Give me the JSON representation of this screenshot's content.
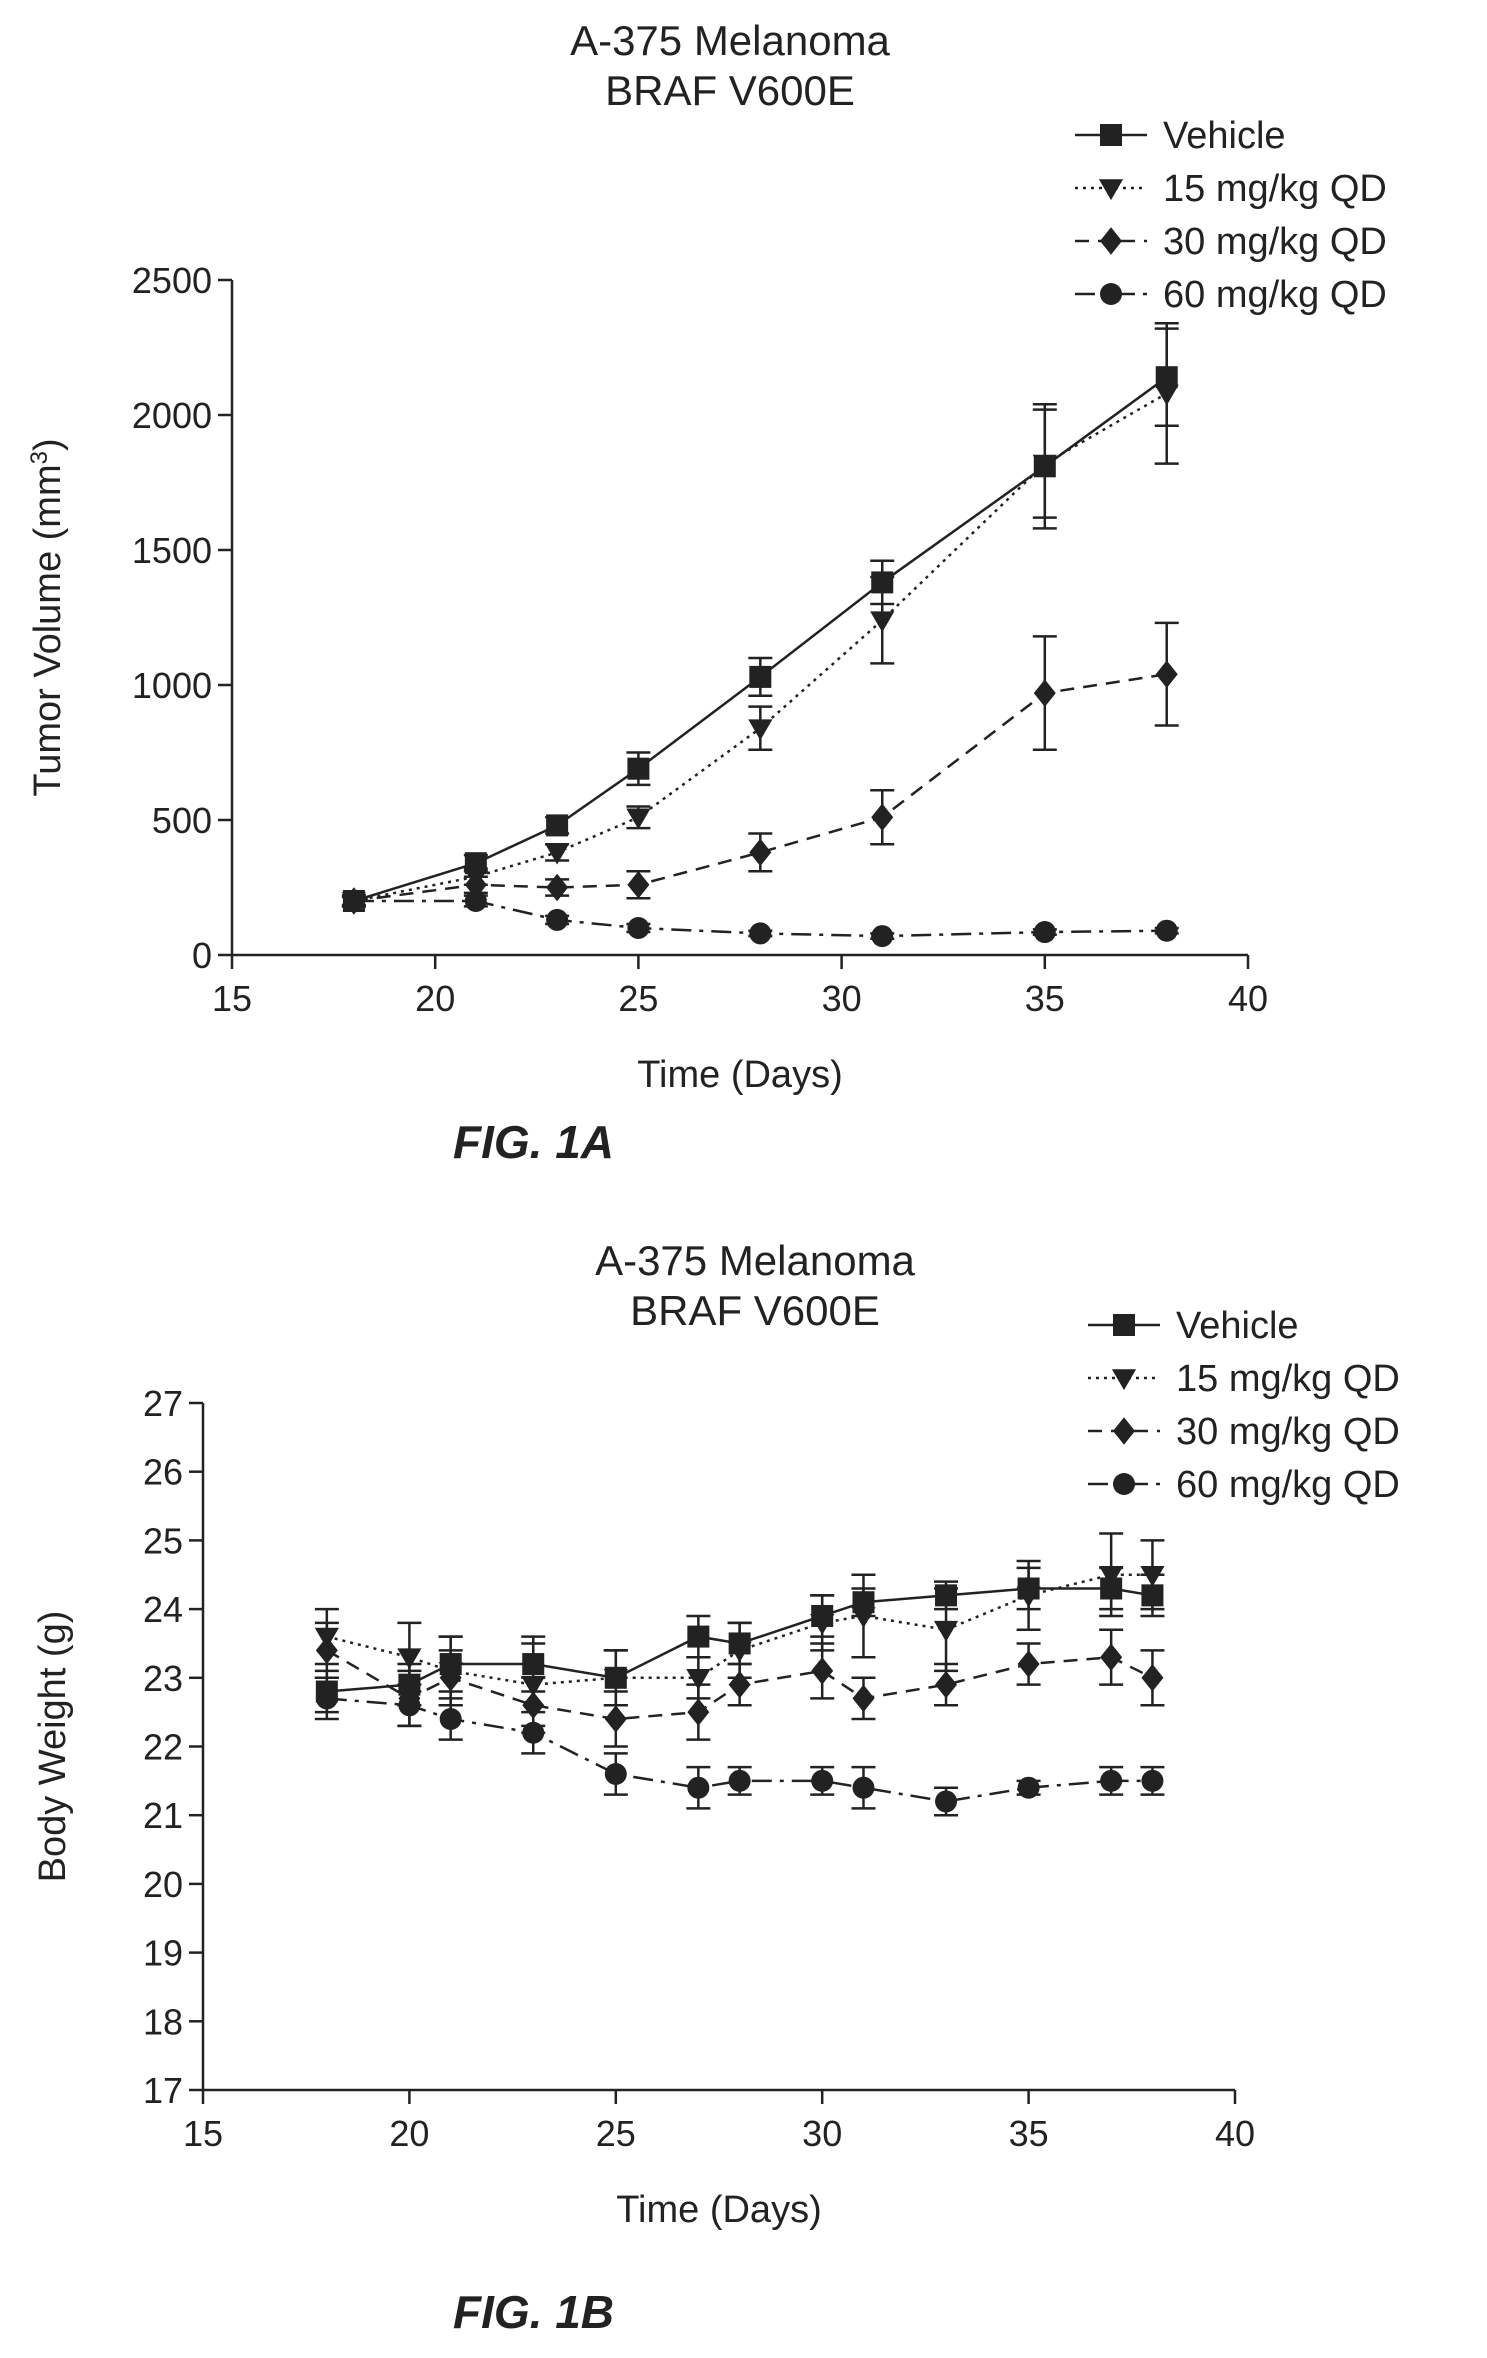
{
  "figures": [
    {
      "caption": "FIG. 1A"
    },
    {
      "caption": "FIG. 1B"
    }
  ],
  "chart_data": [
    {
      "type": "line",
      "title": "A-375 Melanoma",
      "subtitle": "BRAF V600E",
      "xlabel": "Time (Days)",
      "ylabel": "Tumor Volume (mm",
      "ylabel_sup": "3",
      "ylabel_close": ")",
      "xlim": [
        15,
        40
      ],
      "ylim": [
        0,
        2500
      ],
      "xticks": [
        15,
        20,
        25,
        30,
        35,
        40
      ],
      "yticks": [
        0,
        500,
        1000,
        1500,
        2000,
        2500
      ],
      "grid": false,
      "legend_position": "top-right",
      "series": [
        {
          "name": "Vehicle",
          "marker": "square",
          "dash": "solid",
          "x": [
            18,
            21,
            23,
            25,
            28,
            31,
            35,
            38
          ],
          "y": [
            200,
            340,
            480,
            690,
            1030,
            1380,
            1810,
            2140
          ],
          "err": [
            20,
            30,
            30,
            60,
            70,
            80,
            230,
            180
          ]
        },
        {
          "name": "15 mg/kg QD",
          "marker": "triangle-down",
          "dash": "dotted",
          "x": [
            18,
            21,
            23,
            25,
            28,
            31,
            35,
            38
          ],
          "y": [
            200,
            290,
            380,
            510,
            840,
            1240,
            1820,
            2080
          ],
          "err": [
            20,
            30,
            30,
            40,
            80,
            160,
            200,
            260
          ]
        },
        {
          "name": "30 mg/kg QD",
          "marker": "diamond",
          "dash": "dashed",
          "x": [
            18,
            21,
            23,
            25,
            28,
            31,
            35,
            38
          ],
          "y": [
            200,
            260,
            250,
            260,
            380,
            510,
            970,
            1040
          ],
          "err": [
            20,
            30,
            30,
            50,
            70,
            100,
            210,
            190
          ]
        },
        {
          "name": "60 mg/kg QD",
          "marker": "circle",
          "dash": "dashdot",
          "x": [
            18,
            21,
            23,
            25,
            28,
            31,
            35,
            38
          ],
          "y": [
            200,
            200,
            130,
            100,
            80,
            70,
            85,
            90
          ],
          "err": [
            15,
            20,
            15,
            15,
            10,
            10,
            10,
            10
          ]
        }
      ]
    },
    {
      "type": "line",
      "title": "A-375 Melanoma",
      "subtitle": "BRAF V600E",
      "xlabel": "Time (Days)",
      "ylabel": "Body Weight (g)",
      "xlim": [
        15,
        40
      ],
      "ylim": [
        17,
        27
      ],
      "xticks": [
        15,
        20,
        25,
        30,
        35,
        40
      ],
      "yticks": [
        17,
        18,
        19,
        20,
        21,
        22,
        23,
        24,
        25,
        26,
        27
      ],
      "grid": false,
      "legend_position": "top-right",
      "series": [
        {
          "name": "Vehicle",
          "marker": "square",
          "dash": "solid",
          "x": [
            18,
            20,
            21,
            23,
            25,
            27,
            28,
            30,
            31,
            33,
            35,
            37,
            38
          ],
          "y": [
            22.8,
            22.9,
            23.2,
            23.2,
            23.0,
            23.6,
            23.5,
            23.9,
            24.1,
            24.2,
            24.3,
            24.3,
            24.2
          ],
          "err": [
            0.3,
            0.3,
            0.4,
            0.4,
            0.4,
            0.3,
            0.3,
            0.3,
            0.2,
            0.2,
            0.3,
            0.3,
            0.3
          ]
        },
        {
          "name": "15 mg/kg QD",
          "marker": "triangle-down",
          "dash": "dotted",
          "x": [
            18,
            20,
            21,
            23,
            25,
            27,
            28,
            30,
            31,
            33,
            35,
            37,
            38
          ],
          "y": [
            23.6,
            23.3,
            23.1,
            22.9,
            23.0,
            23.0,
            23.4,
            23.8,
            23.9,
            23.7,
            24.2,
            24.5,
            24.5
          ],
          "err": [
            0.4,
            0.5,
            0.5,
            0.6,
            0.4,
            0.3,
            0.4,
            0.4,
            0.6,
            0.6,
            0.5,
            0.6,
            0.5
          ]
        },
        {
          "name": "30 mg/kg QD",
          "marker": "diamond",
          "dash": "dashed",
          "x": [
            18,
            20,
            21,
            23,
            25,
            27,
            28,
            30,
            31,
            33,
            35,
            37,
            38
          ],
          "y": [
            23.4,
            22.7,
            23.0,
            22.6,
            22.4,
            22.5,
            22.9,
            23.1,
            22.7,
            22.9,
            23.2,
            23.3,
            23.0
          ],
          "err": [
            0.4,
            0.4,
            0.4,
            0.4,
            0.4,
            0.4,
            0.3,
            0.4,
            0.3,
            0.3,
            0.3,
            0.4,
            0.4
          ]
        },
        {
          "name": "60 mg/kg QD",
          "marker": "circle",
          "dash": "dashdot",
          "x": [
            18,
            20,
            21,
            23,
            25,
            27,
            28,
            30,
            31,
            33,
            35,
            37,
            38
          ],
          "y": [
            22.7,
            22.6,
            22.4,
            22.2,
            21.6,
            21.4,
            21.5,
            21.5,
            21.4,
            21.2,
            21.4,
            21.5,
            21.5
          ],
          "err": [
            0.3,
            0.3,
            0.3,
            0.3,
            0.3,
            0.3,
            0.2,
            0.2,
            0.3,
            0.2,
            0.1,
            0.2,
            0.2
          ]
        }
      ]
    }
  ]
}
